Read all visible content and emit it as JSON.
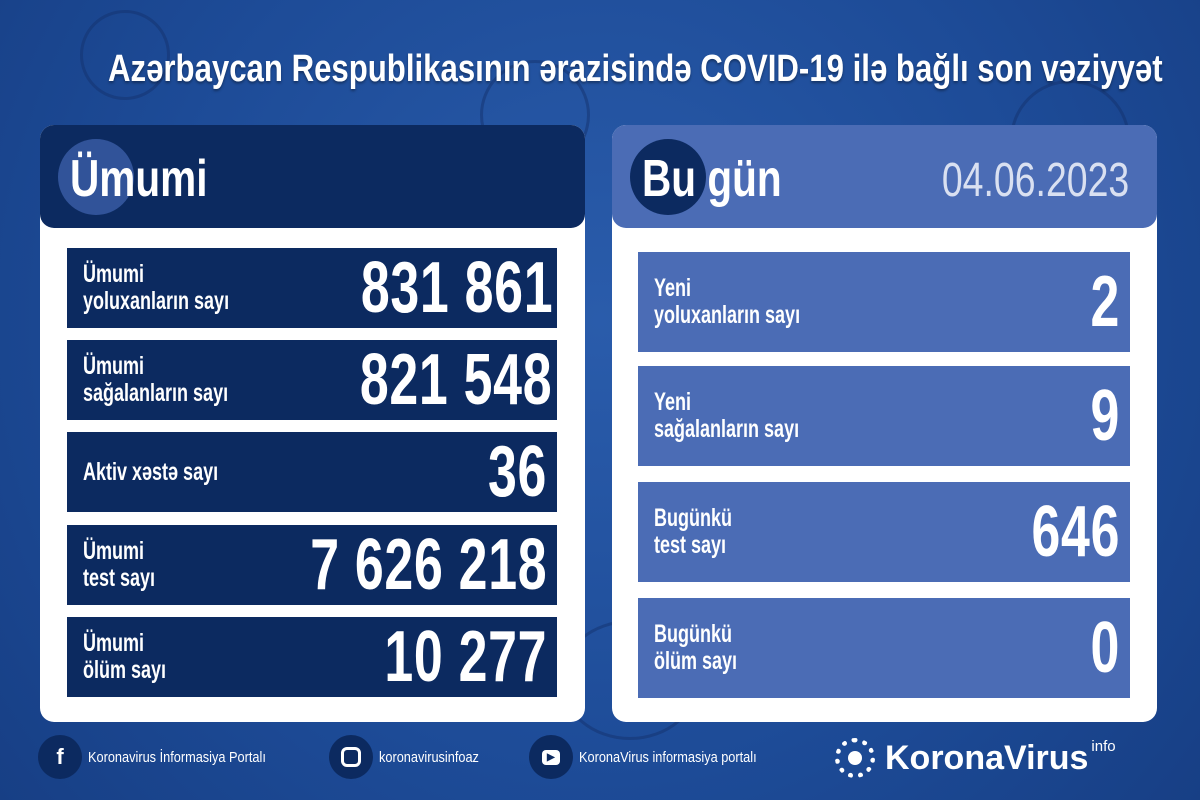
{
  "title": "Azərbaycan Respublikasının ərazisində COVID-19 ilə bağlı son vəziyyət",
  "colors": {
    "background": "#1f4f9c",
    "navy": "#0c2a60",
    "light_blue": "#4b6cb5",
    "date": "#d9e0f1"
  },
  "total": {
    "header": "Ümumi",
    "rows": [
      {
        "label1": "Ümumi",
        "label2": "yoluxanların sayı",
        "value": "831 861"
      },
      {
        "label1": "Ümumi",
        "label2": "sağalanların sayı",
        "value": "821 548"
      },
      {
        "label1": "Aktiv xəstə sayı",
        "label2": "",
        "value": "36"
      },
      {
        "label1": "Ümumi",
        "label2": "test sayı",
        "value": "7 626 218"
      },
      {
        "label1": "Ümumi",
        "label2": "ölüm sayı",
        "value": "10 277"
      }
    ]
  },
  "today": {
    "header": "Bu gün",
    "date": "04.06.2023",
    "rows": [
      {
        "label1": "Yeni",
        "label2": "yoluxanların sayı",
        "value": "2"
      },
      {
        "label1": "Yeni",
        "label2": "sağalanların sayı",
        "value": "9"
      },
      {
        "label1": "Bugünkü",
        "label2": "test sayı",
        "value": "646"
      },
      {
        "label1": "Bugünkü",
        "label2": "ölüm sayı",
        "value": "0"
      }
    ]
  },
  "footer": {
    "facebook": "Koronavirus İnformasiya Portalı",
    "instagram": "koronavirusinfoaz",
    "youtube": "KoronaVirus informasiya portalı",
    "brand": "KoronaVirus",
    "brand_sup": "info"
  }
}
